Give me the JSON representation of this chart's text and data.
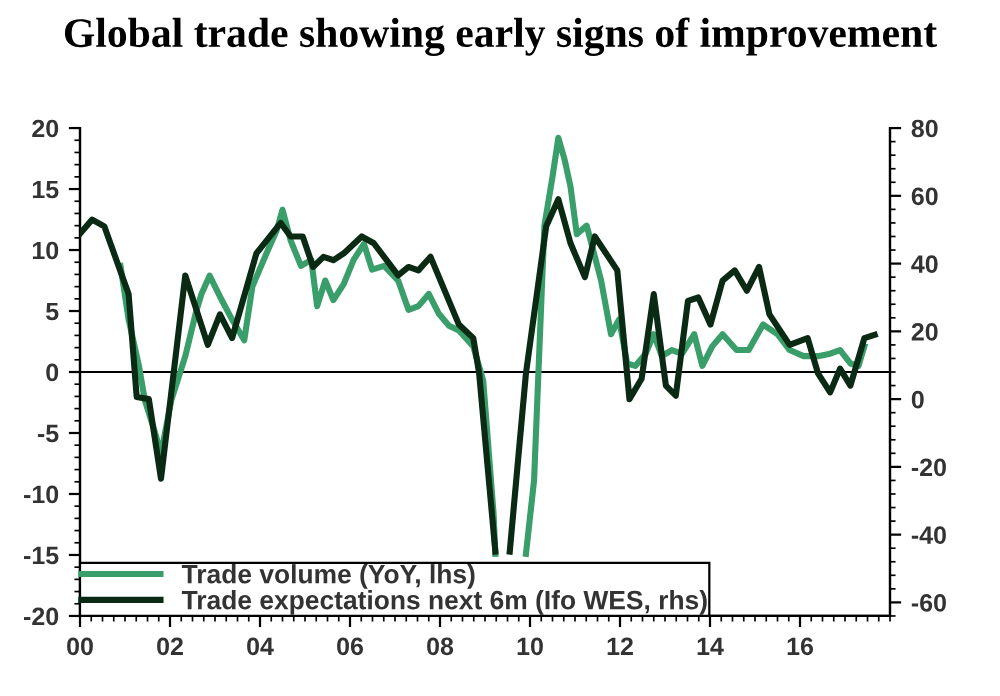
{
  "chart_data": {
    "type": "line",
    "title": "Global trade showing early signs of improvement",
    "series": [
      {
        "name": "Trade volume (YoY, lhs)",
        "color": "#3a9e6a",
        "x": [
          2000.9,
          2001.08,
          2001.31,
          2001.44,
          2001.67,
          2001.8,
          2002.03,
          2002.34,
          2002.57,
          2002.7,
          2002.88,
          2003.15,
          2003.38,
          2003.65,
          2003.83,
          2004.14,
          2004.37,
          2004.5,
          2004.68,
          2004.91,
          2005.14,
          2005.27,
          2005.45,
          2005.63,
          2005.86,
          2006.08,
          2006.31,
          2006.49,
          2006.76,
          2007.07,
          2007.3,
          2007.52,
          2007.75,
          2007.97,
          2008.2,
          2008.42,
          2008.74,
          2008.96,
          2009.19,
          2009.23,
          2009.5,
          2009.91,
          2010.09,
          2010.32,
          2010.5,
          2010.63,
          2010.77,
          2010.9,
          2011.04,
          2011.26,
          2011.58,
          2011.8,
          2011.98,
          2012.16,
          2012.34,
          2012.57,
          2012.75,
          2012.93,
          2013.15,
          2013.38,
          2013.65,
          2013.83,
          2014.05,
          2014.28,
          2014.59,
          2014.86,
          2015.18,
          2015.5,
          2015.77,
          2016.08,
          2016.4,
          2016.67,
          2016.89,
          2017.12,
          2017.3,
          2017.43
        ],
        "values": [
          8.7,
          4.3,
          0.5,
          -2.3,
          -5,
          -6.7,
          -2.3,
          1.3,
          4.8,
          6.4,
          7.9,
          5.9,
          4.3,
          2.6,
          7,
          9.7,
          11.6,
          13.3,
          10.8,
          8.7,
          9.2,
          5.4,
          7.5,
          5.9,
          7.2,
          9.2,
          10.5,
          8.4,
          8.7,
          7.5,
          5.1,
          5.4,
          6.4,
          4.8,
          3.8,
          3.4,
          2.1,
          -0.7,
          -11.6,
          -14.9,
          null,
          -14.9,
          -8.9,
          12,
          16,
          19.2,
          17.4,
          15.2,
          11.3,
          12,
          7.5,
          3.1,
          4.3,
          0.7,
          0.5,
          1.5,
          3.1,
          1.3,
          1.8,
          1.5,
          3.1,
          0.5,
          2.1,
          3.1,
          1.8,
          1.8,
          3.9,
          3.1,
          1.8,
          1.3,
          1.3,
          1.5,
          1.8,
          0.7,
          0.5,
          2.1
        ]
      },
      {
        "name": "Trade expectations next 6m (Ifo WES, rhs)",
        "color": "#0b2a14",
        "axis": "y2",
        "x": [
          2000.0,
          2000.27,
          2000.54,
          2001.08,
          2001.26,
          2001.53,
          2001.8,
          2002.34,
          2002.84,
          2003.11,
          2003.38,
          2003.92,
          2004.46,
          2004.68,
          2004.95,
          2005.18,
          2005.41,
          2005.63,
          2005.86,
          2006.26,
          2006.53,
          2007.07,
          2007.3,
          2007.52,
          2007.79,
          2008.42,
          2008.74,
          2008.87,
          2009.23,
          2009.4,
          2009.55,
          2009.91,
          2010.36,
          2010.63,
          2010.9,
          2011.22,
          2011.44,
          2011.94,
          2012.21,
          2012.48,
          2012.75,
          2013.02,
          2013.24,
          2013.51,
          2013.74,
          2014.01,
          2014.28,
          2014.55,
          2014.82,
          2015.09,
          2015.32,
          2015.77,
          2016.17,
          2016.4,
          2016.67,
          2016.89,
          2017.12,
          2017.43,
          2017.66
        ],
        "values": [
          48.8,
          53,
          51,
          31,
          0.6,
          0,
          -23.5,
          36.5,
          16,
          25,
          18,
          43,
          52,
          48,
          48,
          39,
          42,
          41,
          43,
          48,
          46,
          36.5,
          39,
          38,
          42,
          22,
          18,
          7.6,
          -45,
          null,
          -45,
          7.6,
          51,
          59,
          46,
          36,
          48,
          38,
          0,
          6,
          31,
          4,
          1,
          29,
          30,
          22,
          35,
          38,
          32,
          39,
          25,
          16,
          18,
          7.6,
          2,
          9,
          4,
          18,
          19
        ]
      }
    ],
    "xlim": [
      2000,
      2018
    ],
    "xticks": [
      {
        "value": 2000,
        "label": "00"
      },
      {
        "value": 2002,
        "label": "02"
      },
      {
        "value": 2004,
        "label": "04"
      },
      {
        "value": 2006,
        "label": "06"
      },
      {
        "value": 2008,
        "label": "08"
      },
      {
        "value": 2010,
        "label": "10"
      },
      {
        "value": 2012,
        "label": "12"
      },
      {
        "value": 2014,
        "label": "14"
      },
      {
        "value": 2016,
        "label": "16"
      }
    ],
    "ylim": [
      -20,
      20
    ],
    "yticks": [
      -20,
      -15,
      -10,
      -5,
      0,
      5,
      10,
      15,
      20
    ],
    "y2lim": [
      -64,
      80
    ],
    "y2ticks": [
      -60,
      -40,
      -20,
      0,
      20,
      40,
      60,
      80
    ],
    "ref_lines": [
      {
        "axis": "y",
        "value": 0,
        "color": "#000000"
      }
    ],
    "legend": "bottom left",
    "grid": false
  }
}
